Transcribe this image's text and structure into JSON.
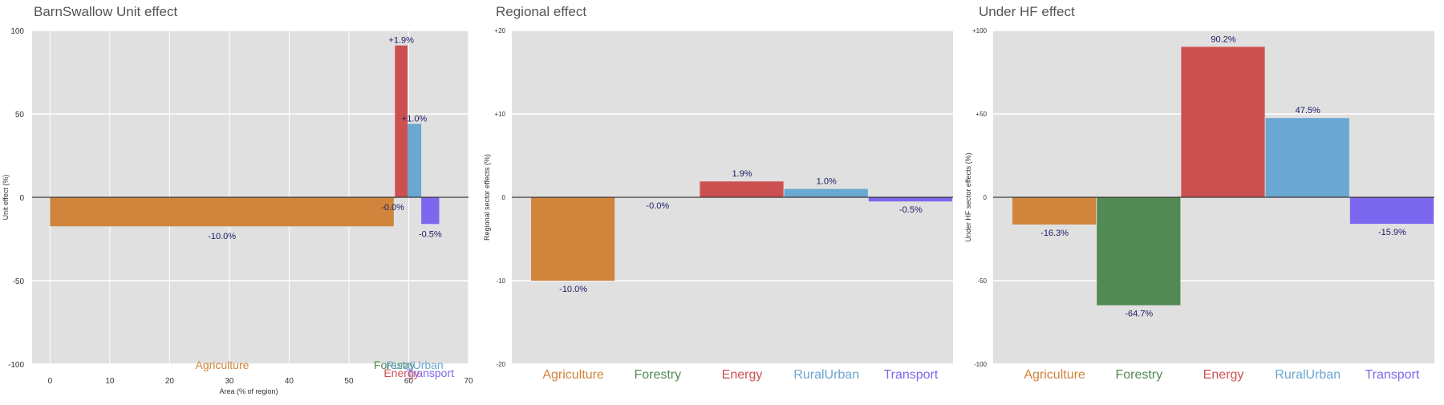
{
  "colors": {
    "Agriculture": "#D0843C",
    "Forestry": "#518A52",
    "Energy": "#CC5050",
    "RuralUrban": "#6AA7D1",
    "Transport": "#7B68EE",
    "panel_bg": "#E0E0E0",
    "grid": "#FFFFFF",
    "title": "#555555"
  },
  "chart_data": [
    {
      "type": "bar",
      "title": "BarnSwallow Unit effect",
      "xlabel": "Area (% of region)",
      "ylabel": "Unit effect (%)",
      "xlim": [
        -3,
        70
      ],
      "ylim": [
        -100,
        100
      ],
      "x_ticks": [
        "0",
        "10",
        "20",
        "30",
        "40",
        "50",
        "60",
        "70"
      ],
      "y_ticks": [
        "-100",
        "-50",
        "0",
        "50",
        "100"
      ],
      "categories": [
        "Agriculture",
        "Forestry",
        "Energy",
        "RuralUrban",
        "Transport"
      ],
      "bars": [
        {
          "category": "Agriculture",
          "x_start": 0,
          "width": 57.5,
          "value": -17.4,
          "label": "-10.0%"
        },
        {
          "category": "Forestry",
          "x_start": 57.5,
          "width": 0.2,
          "value": -0.5,
          "label": "-0.0%"
        },
        {
          "category": "Energy",
          "x_start": 57.7,
          "width": 2.1,
          "value": 91,
          "label": "+1.9%"
        },
        {
          "category": "RuralUrban",
          "x_start": 59.8,
          "width": 2.3,
          "value": 44,
          "label": "+1.0%"
        },
        {
          "category": "Transport",
          "x_start": 62.1,
          "width": 3.0,
          "value": -16,
          "label": "-0.5%"
        }
      ],
      "category_label_x": [
        28.8,
        57.6,
        58.8,
        61.0,
        63.6
      ]
    },
    {
      "type": "bar",
      "title": "Regional effect",
      "ylabel": "Regional sector effects (%)",
      "ylim": [
        -20,
        20
      ],
      "y_ticks": [
        "-20",
        "-10",
        "0",
        "+10",
        "+20"
      ],
      "categories": [
        "Agriculture",
        "Forestry",
        "Energy",
        "RuralUrban",
        "Transport"
      ],
      "values": [
        -10.0,
        -0.0,
        1.9,
        1.0,
        -0.5
      ],
      "labels": [
        "-10.0%",
        "-0.0%",
        "1.9%",
        "1.0%",
        "-0.5%"
      ]
    },
    {
      "type": "bar",
      "title": "Under HF effect",
      "ylabel": "Under HF sector effects (%)",
      "ylim": [
        -100,
        100
      ],
      "y_ticks": [
        "-100",
        "-50",
        "0",
        "+50",
        "+100"
      ],
      "categories": [
        "Agriculture",
        "Forestry",
        "Energy",
        "RuralUrban",
        "Transport"
      ],
      "values": [
        -16.3,
        -64.7,
        90.2,
        47.5,
        -15.9
      ],
      "labels": [
        "-16.3%",
        "-64.7%",
        "90.2%",
        "47.5%",
        "-15.9%"
      ]
    }
  ]
}
